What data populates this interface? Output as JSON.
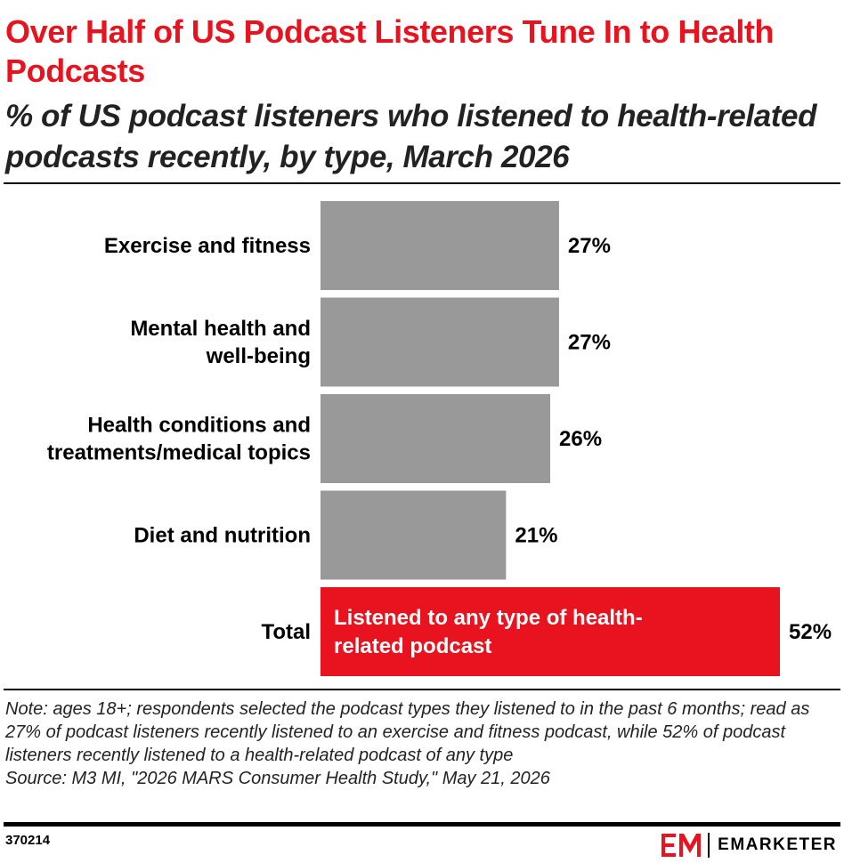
{
  "header": {
    "title": "Over Half of US Podcast Listeners Tune In to Health Podcasts",
    "subtitle": "% of US podcast listeners who listened to health-related podcasts recently, by type, March 2026"
  },
  "chart_data": {
    "type": "bar",
    "orientation": "horizontal",
    "categories": [
      [
        "Exercise and fitness"
      ],
      [
        "Mental health and",
        "well-being"
      ],
      [
        "Health conditions and",
        "treatments/medical topics"
      ],
      [
        "Diet and nutrition"
      ],
      [
        "Total"
      ]
    ],
    "values": [
      27,
      27,
      26,
      21,
      52
    ],
    "value_labels": [
      "27%",
      "27%",
      "26%",
      "21%",
      "52%"
    ],
    "bar_inner_text": [
      null,
      null,
      null,
      null,
      [
        "Listened to any type of health-",
        "related podcast"
      ]
    ],
    "colors": {
      "default": "#999999",
      "highlight": "#e8131e"
    },
    "highlight_index": 4,
    "xlim": [
      0,
      52
    ],
    "grid": false,
    "legend": "none"
  },
  "notes": {
    "note": "Note: ages 18+; respondents selected the podcast types they listened to in the past 6 months; read as 27% of podcast listeners recently listened to an exercise and fitness podcast, while 52% of podcast listeners recently listened to a health-related podcast of any type",
    "source": "Source: M3 MI, \"2026 MARS Consumer Health Study,\" May 21, 2026"
  },
  "footer": {
    "chart_id": "370214",
    "brand_name": "EMARKETER",
    "logo_icon": "em-logo-icon",
    "brand_color": "#e8131e"
  }
}
